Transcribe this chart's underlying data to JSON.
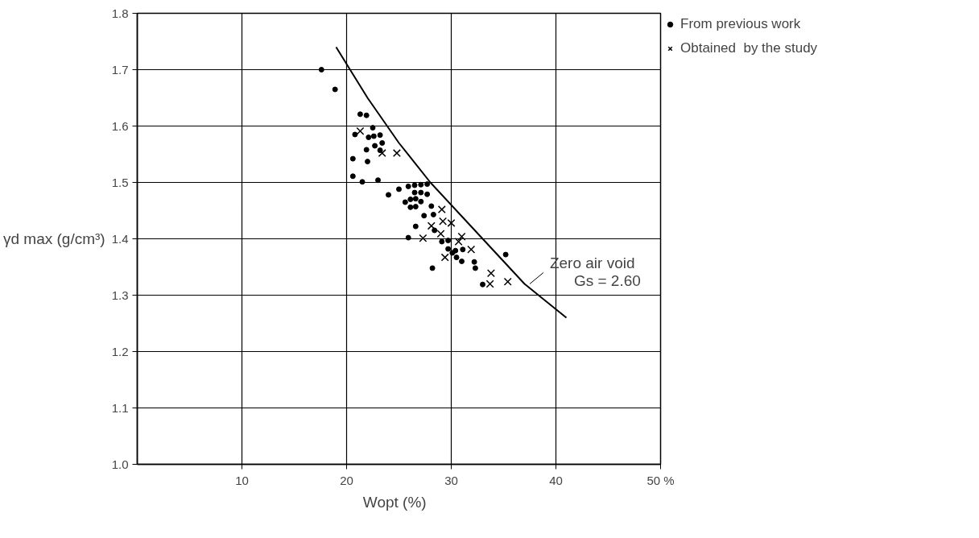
{
  "chart_data": {
    "type": "scatter",
    "xlabel": "Wopt   (%)",
    "ylabel": "γd max (g/cm³)",
    "xlim": [
      0,
      50
    ],
    "ylim": [
      1.0,
      1.8
    ],
    "xticks": [
      10,
      20,
      30,
      40,
      {
        "value": 50,
        "label": "50 %"
      }
    ],
    "yticks": [
      {
        "value": 1.0,
        "label": "1.0"
      },
      1.1,
      1.2,
      1.3,
      1.4,
      1.5,
      1.6,
      1.7,
      {
        "value": 1.8,
        "label": "1.8"
      }
    ],
    "grid": true,
    "legend": "top right",
    "annotations": [
      {
        "text": "Zero air void\nGs = 2.60",
        "x": 37.5,
        "y": 1.32
      }
    ],
    "series": [
      {
        "name": "From previous work",
        "marker": "circle",
        "color": "#000000",
        "x": [
          17.6,
          18.9,
          21.3,
          21.9,
          22.5,
          20.8,
          22.1,
          22.6,
          23.2,
          23.4,
          21.9,
          22.7,
          23.2,
          20.6,
          22.0,
          20.6,
          21.5,
          23.0,
          24.0,
          25.0,
          25.9,
          26.5,
          27.1,
          27.7,
          26.5,
          27.1,
          27.7,
          25.6,
          26.1,
          26.6,
          27.1,
          26.1,
          26.6,
          28.1,
          27.4,
          28.3,
          26.6,
          25.9,
          28.4,
          29.1,
          29.7,
          29.7,
          30.4,
          30.1,
          31.1,
          30.5,
          31.0,
          32.2,
          32.3,
          28.2,
          35.2,
          33.0
        ],
        "values": [
          1.7,
          1.665,
          1.621,
          1.619,
          1.597,
          1.585,
          1.58,
          1.582,
          1.584,
          1.57,
          1.558,
          1.565,
          1.557,
          1.542,
          1.537,
          1.511,
          1.501,
          1.504,
          1.478,
          1.488,
          1.493,
          1.495,
          1.496,
          1.497,
          1.482,
          1.482,
          1.479,
          1.465,
          1.47,
          1.471,
          1.466,
          1.456,
          1.457,
          1.458,
          1.441,
          1.443,
          1.422,
          1.402,
          1.415,
          1.395,
          1.397,
          1.382,
          1.379,
          1.375,
          1.381,
          1.367,
          1.36,
          1.359,
          1.348,
          1.348,
          1.372,
          1.319
        ]
      },
      {
        "name": "Obtained  by the study",
        "marker": "cross",
        "color": "#000000",
        "x": [
          21.3,
          23.4,
          24.8,
          29.1,
          29.2,
          30.0,
          28.1,
          29.0,
          27.3,
          31.0,
          30.7,
          31.9,
          29.4,
          33.8,
          33.7,
          35.4
        ],
        "values": [
          1.591,
          1.552,
          1.552,
          1.452,
          1.431,
          1.428,
          1.423,
          1.409,
          1.401,
          1.404,
          1.395,
          1.381,
          1.367,
          1.339,
          1.32,
          1.324
        ]
      },
      {
        "type": "line",
        "color": "#000000",
        "line_style": "solid",
        "marker": "none",
        "x": [
          19,
          22,
          25,
          28,
          31,
          34,
          37,
          41
        ],
        "values": [
          1.74,
          1.65,
          1.57,
          1.5,
          1.44,
          1.38,
          1.32,
          1.26
        ]
      }
    ]
  }
}
